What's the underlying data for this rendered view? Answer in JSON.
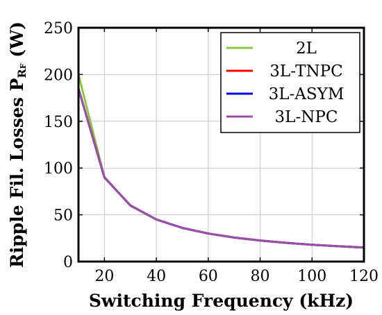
{
  "chart_data": {
    "type": "line",
    "title": "",
    "xlabel": "Switching Frequency (kHz)",
    "ylabel": "Ripple Fil. Losses P",
    "ylabel_subscript": "R",
    "ylabel_subsubscript": "F",
    "ylabel_unit": " (W)",
    "xlim": [
      10,
      120
    ],
    "ylim": [
      0,
      250
    ],
    "xticks": [
      20,
      40,
      60,
      80,
      100,
      120
    ],
    "yticks": [
      0,
      50,
      100,
      150,
      200,
      250
    ],
    "grid": true,
    "legend_position": "top-right",
    "x": [
      10,
      20,
      30,
      40,
      50,
      60,
      70,
      80,
      90,
      100,
      110,
      120
    ],
    "series": [
      {
        "name": "2L",
        "color": "#8dc63f",
        "values": [
          200,
          90,
          60,
          45,
          36,
          30,
          25.7,
          22.5,
          20,
          18,
          16.4,
          15
        ]
      },
      {
        "name": "3L-TNPC",
        "color": "#ff0000",
        "values": [
          185,
          90,
          60,
          45,
          36,
          30,
          25.7,
          22.5,
          20,
          18,
          16.4,
          15
        ]
      },
      {
        "name": "3L-ASYM",
        "color": "#0000ff",
        "values": [
          185,
          90,
          60,
          45,
          36,
          30,
          25.7,
          22.5,
          20,
          18,
          16.4,
          15
        ]
      },
      {
        "name": "3L-NPC",
        "color": "#9b4fa6",
        "values": [
          185,
          90,
          60,
          45,
          36,
          30,
          25.7,
          22.5,
          20,
          18,
          16.4,
          15
        ]
      }
    ]
  }
}
